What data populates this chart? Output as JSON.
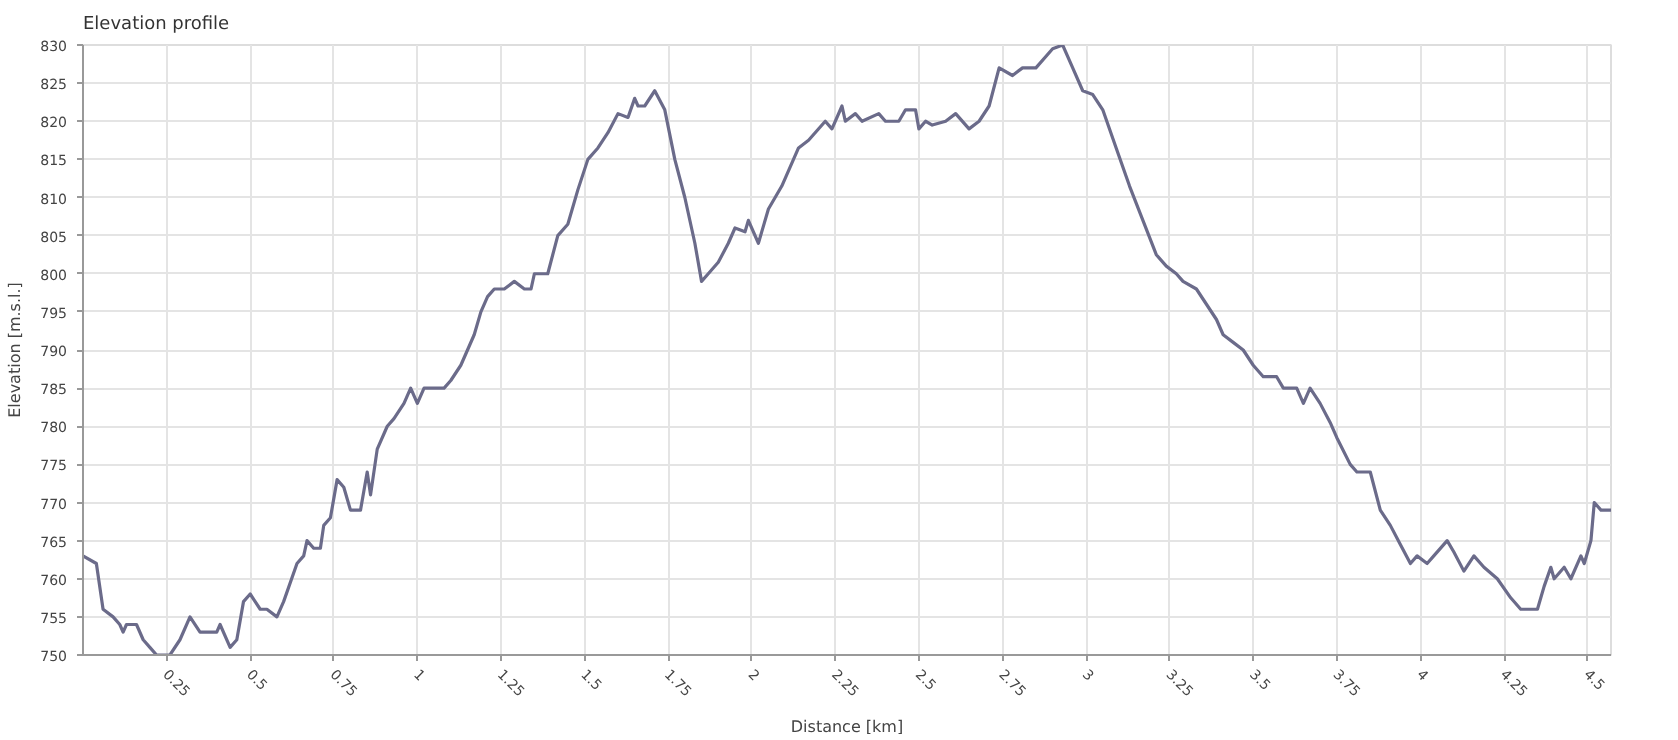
{
  "chart_data": {
    "type": "line",
    "title": "Elevation profile",
    "xlabel": "Distance [km]",
    "ylabel": "Elevation [m.s.l.]",
    "x": [
      0,
      0.04,
      0.06,
      0.09,
      0.11,
      0.12,
      0.13,
      0.16,
      0.18,
      0.2,
      0.22,
      0.26,
      0.29,
      0.32,
      0.35,
      0.4,
      0.41,
      0.44,
      0.46,
      0.48,
      0.5,
      0.53,
      0.55,
      0.58,
      0.6,
      0.64,
      0.66,
      0.67,
      0.69,
      0.71,
      0.72,
      0.74,
      0.76,
      0.78,
      0.8,
      0.83,
      0.85,
      0.86,
      0.88,
      0.91,
      0.93,
      0.96,
      0.98,
      1.0,
      1.02,
      1.08,
      1.1,
      1.13,
      1.15,
      1.17,
      1.19,
      1.21,
      1.23,
      1.26,
      1.29,
      1.32,
      1.34,
      1.35,
      1.39,
      1.42,
      1.45,
      1.48,
      1.51,
      1.54,
      1.57,
      1.6,
      1.63,
      1.65,
      1.66,
      1.68,
      1.71,
      1.74,
      1.77,
      1.8,
      1.83,
      1.85,
      1.87,
      1.9,
      1.93,
      1.95,
      1.98,
      1.99,
      2.02,
      2.05,
      2.09,
      2.14,
      2.17,
      2.22,
      2.24,
      2.27,
      2.28,
      2.31,
      2.33,
      2.38,
      2.4,
      2.44,
      2.46,
      2.49,
      2.5,
      2.52,
      2.54,
      2.58,
      2.61,
      2.65,
      2.68,
      2.71,
      2.74,
      2.78,
      2.81,
      2.85,
      2.9,
      2.93,
      2.96,
      2.99,
      3.02,
      3.05,
      3.09,
      3.13,
      3.17,
      3.21,
      3.24,
      3.27,
      3.29,
      3.33,
      3.36,
      3.39,
      3.41,
      3.44,
      3.47,
      3.5,
      3.53,
      3.57,
      3.59,
      3.63,
      3.65,
      3.67,
      3.7,
      3.73,
      3.75,
      3.79,
      3.81,
      3.85,
      3.88,
      3.91,
      3.94,
      3.97,
      3.99,
      4.02,
      4.04,
      4.08,
      4.1,
      4.13,
      4.16,
      4.19,
      4.23,
      4.27,
      4.3,
      4.35,
      4.37,
      4.39,
      4.4,
      4.43,
      4.45,
      4.48,
      4.49,
      4.51,
      4.52,
      4.54,
      4.57
    ],
    "series": [
      {
        "color": "#6b6b8a",
        "values": [
          763,
          762,
          756,
          755,
          754,
          753,
          754,
          754,
          752,
          751,
          750,
          750,
          752,
          755,
          753,
          753,
          754,
          751,
          752,
          757,
          758,
          756,
          756,
          755,
          757,
          762,
          763,
          765,
          764,
          764,
          767,
          768,
          773,
          772,
          769,
          769,
          774,
          771,
          777,
          780,
          781,
          783,
          785,
          783,
          785,
          785,
          786,
          788,
          790,
          792,
          795,
          797,
          798,
          798,
          799,
          798,
          798,
          800,
          800,
          805,
          806.5,
          811,
          815,
          816.5,
          818.5,
          821,
          820.5,
          823,
          822,
          822,
          824,
          821.5,
          815,
          810,
          804,
          799,
          800,
          801.5,
          804,
          806,
          805.5,
          807,
          804,
          808.5,
          811.5,
          816.5,
          817.5,
          820,
          819,
          822,
          820,
          821,
          820,
          821,
          820,
          820,
          821.5,
          821.5,
          819,
          820,
          819.5,
          820,
          821,
          819,
          820,
          822,
          827,
          826,
          827,
          827,
          829.5,
          830,
          827,
          824,
          823.5,
          821.5,
          816.5,
          811.5,
          807,
          802.5,
          801,
          800,
          799,
          798,
          796,
          794,
          792,
          791,
          790,
          788,
          786.5,
          786.5,
          785,
          785,
          783,
          785,
          783,
          780.5,
          778.5,
          775,
          774,
          774,
          769,
          767,
          764.5,
          762,
          763,
          762,
          763,
          765,
          763.5,
          761,
          763,
          761.5,
          760,
          757.5,
          756,
          756,
          759,
          761.5,
          760,
          761.5,
          760,
          763,
          762,
          765,
          770,
          769,
          769
        ]
      }
    ],
    "xlim": [
      0,
      4.57
    ],
    "ylim": [
      750,
      830
    ],
    "xticks": [
      0.25,
      0.5,
      0.75,
      1,
      1.25,
      1.5,
      1.75,
      2,
      2.25,
      2.5,
      2.75,
      3,
      3.25,
      3.5,
      3.75,
      4,
      4.25,
      4.5
    ],
    "yticks": [
      750,
      755,
      760,
      765,
      770,
      775,
      780,
      785,
      790,
      795,
      800,
      805,
      810,
      815,
      820,
      825,
      830
    ],
    "grid": true,
    "marker": "none",
    "line_style": "solid"
  }
}
